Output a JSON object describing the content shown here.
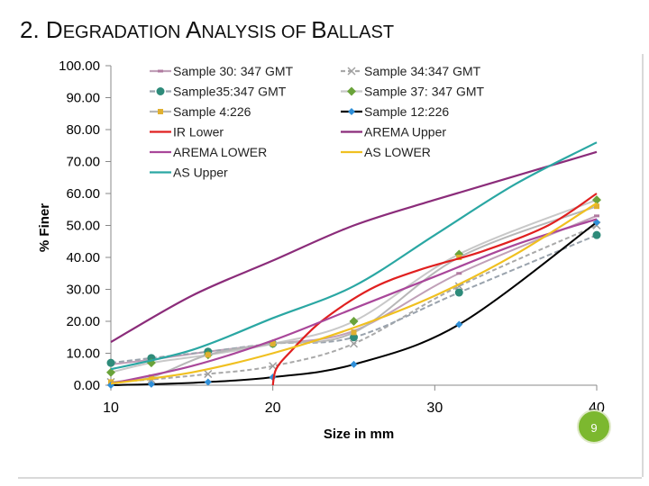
{
  "slide": {
    "title_parts": [
      {
        "text": "2. D",
        "big": true
      },
      {
        "text": "EGRADATION ",
        "big": false
      },
      {
        "text": "A",
        "big": true
      },
      {
        "text": "NALYSIS OF ",
        "big": false
      },
      {
        "text": "B",
        "big": true
      },
      {
        "text": "ALLAST",
        "big": false
      }
    ],
    "page_number": "9"
  },
  "chart_data": {
    "type": "line",
    "title": "",
    "xlabel": "Size in mm",
    "ylabel": "% Finer",
    "xlim": [
      10,
      40
    ],
    "ylim": [
      0,
      100
    ],
    "x_ticks": [
      "10",
      "20",
      "30",
      "40"
    ],
    "y_ticks": [
      "0.00",
      "10.00",
      "20.00",
      "30.00",
      "40.00",
      "50.00",
      "60.00",
      "70.00",
      "80.00",
      "90.00",
      "100.00"
    ],
    "legend_position": "top-right, two columns",
    "series": [
      {
        "name": "Sample 30: 347 GMT",
        "color": "#c0a0b8",
        "marker": "dash",
        "dash": "none",
        "smooth": true,
        "points": [
          [
            10,
            6.5
          ],
          [
            12.5,
            8.0
          ],
          [
            16,
            10.5
          ],
          [
            20,
            13.0
          ],
          [
            25,
            17.0
          ],
          [
            31.5,
            35.0
          ],
          [
            40,
            53.0
          ]
        ]
      },
      {
        "name": "Sample 34:347 GMT",
        "color": "#a9a9a9",
        "marker": "x",
        "dash": "5,3",
        "smooth": true,
        "points": [
          [
            10,
            1.0
          ],
          [
            12.5,
            1.8
          ],
          [
            16,
            3.5
          ],
          [
            20,
            6.0
          ],
          [
            25,
            13.0
          ],
          [
            31.5,
            31.0
          ],
          [
            40,
            50.0
          ]
        ]
      },
      {
        "name": "Sample35:347 GMT",
        "color": "#9aa3ad",
        "marker": "circle",
        "dash": "6,3",
        "smooth": true,
        "points": [
          [
            10,
            7.0
          ],
          [
            12.5,
            8.5
          ],
          [
            16,
            10.5
          ],
          [
            20,
            13.0
          ],
          [
            25,
            15.0
          ],
          [
            31.5,
            29.0
          ],
          [
            40,
            47.0
          ]
        ]
      },
      {
        "name": "Sample 37: 347 GMT",
        "color": "#c8c8c8",
        "marker": "diamond",
        "dash": "none",
        "smooth": true,
        "points": [
          [
            10,
            4.0
          ],
          [
            12.5,
            7.0
          ],
          [
            16,
            9.5
          ],
          [
            20,
            13.0
          ],
          [
            25,
            20.0
          ],
          [
            31.5,
            41.0
          ],
          [
            40,
            58.0
          ]
        ]
      },
      {
        "name": "Sample 4:226",
        "color": "#b7b7b7",
        "marker": "square",
        "dash": "none",
        "smooth": true,
        "points": [
          [
            10,
            1.0
          ],
          [
            12.5,
            2.5
          ],
          [
            16,
            9.5
          ],
          [
            20,
            13.0
          ],
          [
            25,
            16.5
          ],
          [
            31.5,
            40.0
          ],
          [
            40,
            56.0
          ]
        ]
      },
      {
        "name": "Sample 12:226",
        "color": "#000000",
        "marker": "diamond-blue",
        "dash": "none",
        "smooth": true,
        "points": [
          [
            10,
            0.0
          ],
          [
            12.5,
            0.3
          ],
          [
            16,
            1.0
          ],
          [
            20,
            2.5
          ],
          [
            25,
            6.5
          ],
          [
            31.5,
            19.0
          ],
          [
            40,
            51.0
          ]
        ]
      },
      {
        "name": "IR Lower",
        "color": "#e02020",
        "marker": "none",
        "dash": "none",
        "smooth": true,
        "points": [
          [
            20,
            0.0
          ],
          [
            20.2,
            5.0
          ],
          [
            21,
            10.0
          ],
          [
            23,
            20.0
          ],
          [
            26,
            30.0
          ],
          [
            29,
            36.0
          ],
          [
            33,
            42.0
          ],
          [
            37,
            50.0
          ],
          [
            40,
            60.0
          ]
        ]
      },
      {
        "name": "AREMA Upper",
        "color": "#8b2c7a",
        "marker": "none",
        "dash": "none",
        "smooth": true,
        "points": [
          [
            10,
            13.5
          ],
          [
            15,
            28.0
          ],
          [
            20,
            39.0
          ],
          [
            25,
            50.0
          ],
          [
            30,
            58.0
          ],
          [
            35,
            65.5
          ],
          [
            40,
            73.0
          ]
        ]
      },
      {
        "name": "AREMA LOWER",
        "color": "#a9479a",
        "marker": "none",
        "dash": "none",
        "smooth": true,
        "points": [
          [
            10,
            0.5
          ],
          [
            15,
            6.0
          ],
          [
            20,
            14.0
          ],
          [
            25,
            24.0
          ],
          [
            30,
            34.0
          ],
          [
            35,
            44.0
          ],
          [
            40,
            52.0
          ]
        ]
      },
      {
        "name": "AS LOWER",
        "color": "#f0c020",
        "marker": "none",
        "dash": "none",
        "smooth": true,
        "points": [
          [
            10,
            0.5
          ],
          [
            15,
            4.0
          ],
          [
            20,
            10.0
          ],
          [
            25,
            18.0
          ],
          [
            30,
            28.0
          ],
          [
            35,
            41.0
          ],
          [
            40,
            57.0
          ]
        ]
      },
      {
        "name": "AS Upper",
        "color": "#2aa7a3",
        "marker": "none",
        "dash": "none",
        "smooth": true,
        "points": [
          [
            10,
            5.0
          ],
          [
            15,
            11.0
          ],
          [
            20,
            21.0
          ],
          [
            25,
            31.0
          ],
          [
            30,
            47.0
          ],
          [
            35,
            63.0
          ],
          [
            40,
            76.0
          ]
        ]
      }
    ],
    "legend_order": [
      "Sample 30: 347 GMT",
      "Sample 34:347 GMT",
      "Sample35:347 GMT",
      "Sample 37: 347 GMT",
      "Sample 4:226",
      "Sample 12:226",
      "IR Lower",
      "AREMA Upper",
      "AREMA LOWER",
      "AS LOWER",
      "AS Upper"
    ]
  }
}
